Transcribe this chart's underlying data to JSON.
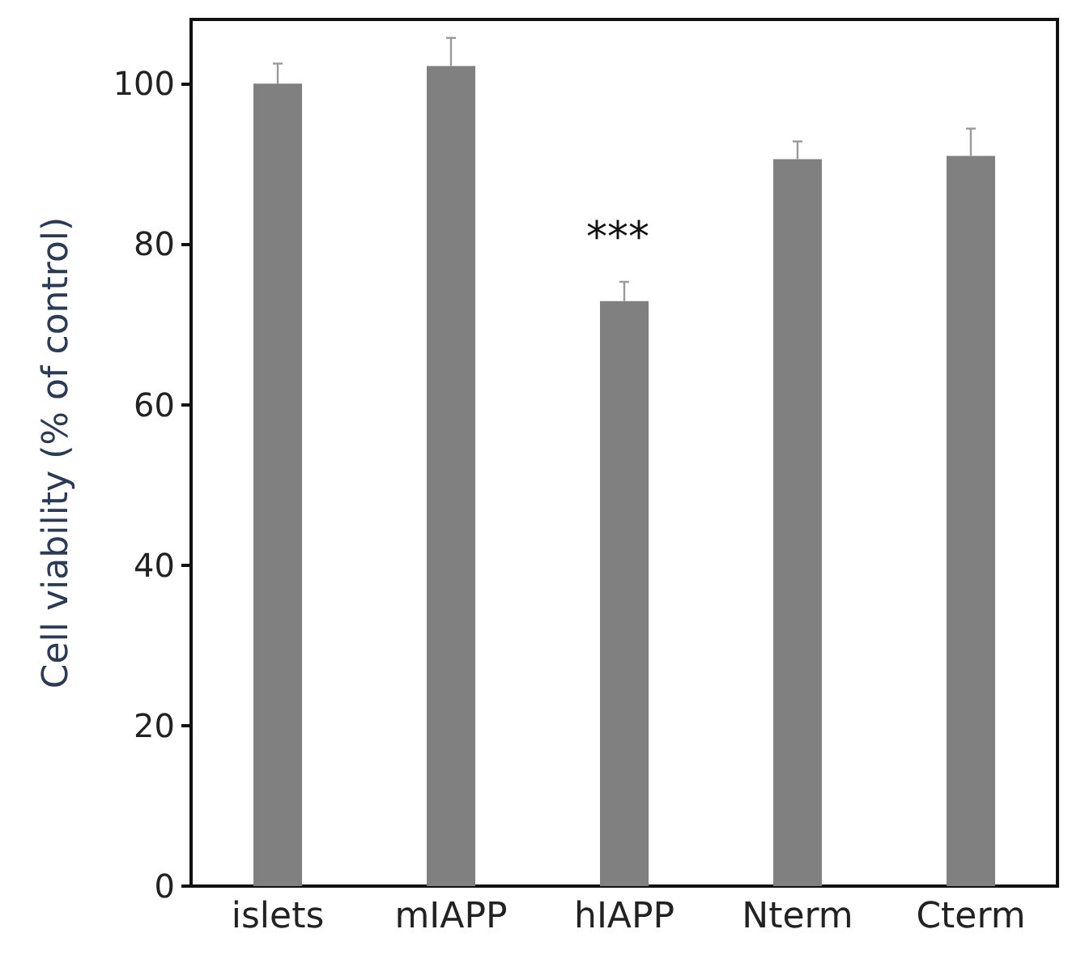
{
  "chart_data": {
    "type": "bar",
    "ylabel": "Cell viability (% of control)",
    "categories": [
      "islets",
      "mIAPP",
      "hIAPP",
      "Nterm",
      "Cterm"
    ],
    "values": [
      100,
      102.2,
      72.9,
      90.6,
      91.0
    ],
    "errors": [
      [
        100,
        102.5
      ],
      [
        102.2,
        105.7
      ],
      [
        72.9,
        75.3
      ],
      [
        90.6,
        92.8
      ],
      [
        91.0,
        94.4
      ]
    ],
    "color": "#808080",
    "ylim": [
      0,
      108
    ],
    "yticks": [
      0,
      20,
      40,
      60,
      80,
      100
    ],
    "grid": false,
    "annotations": [
      "***"
    ]
  }
}
